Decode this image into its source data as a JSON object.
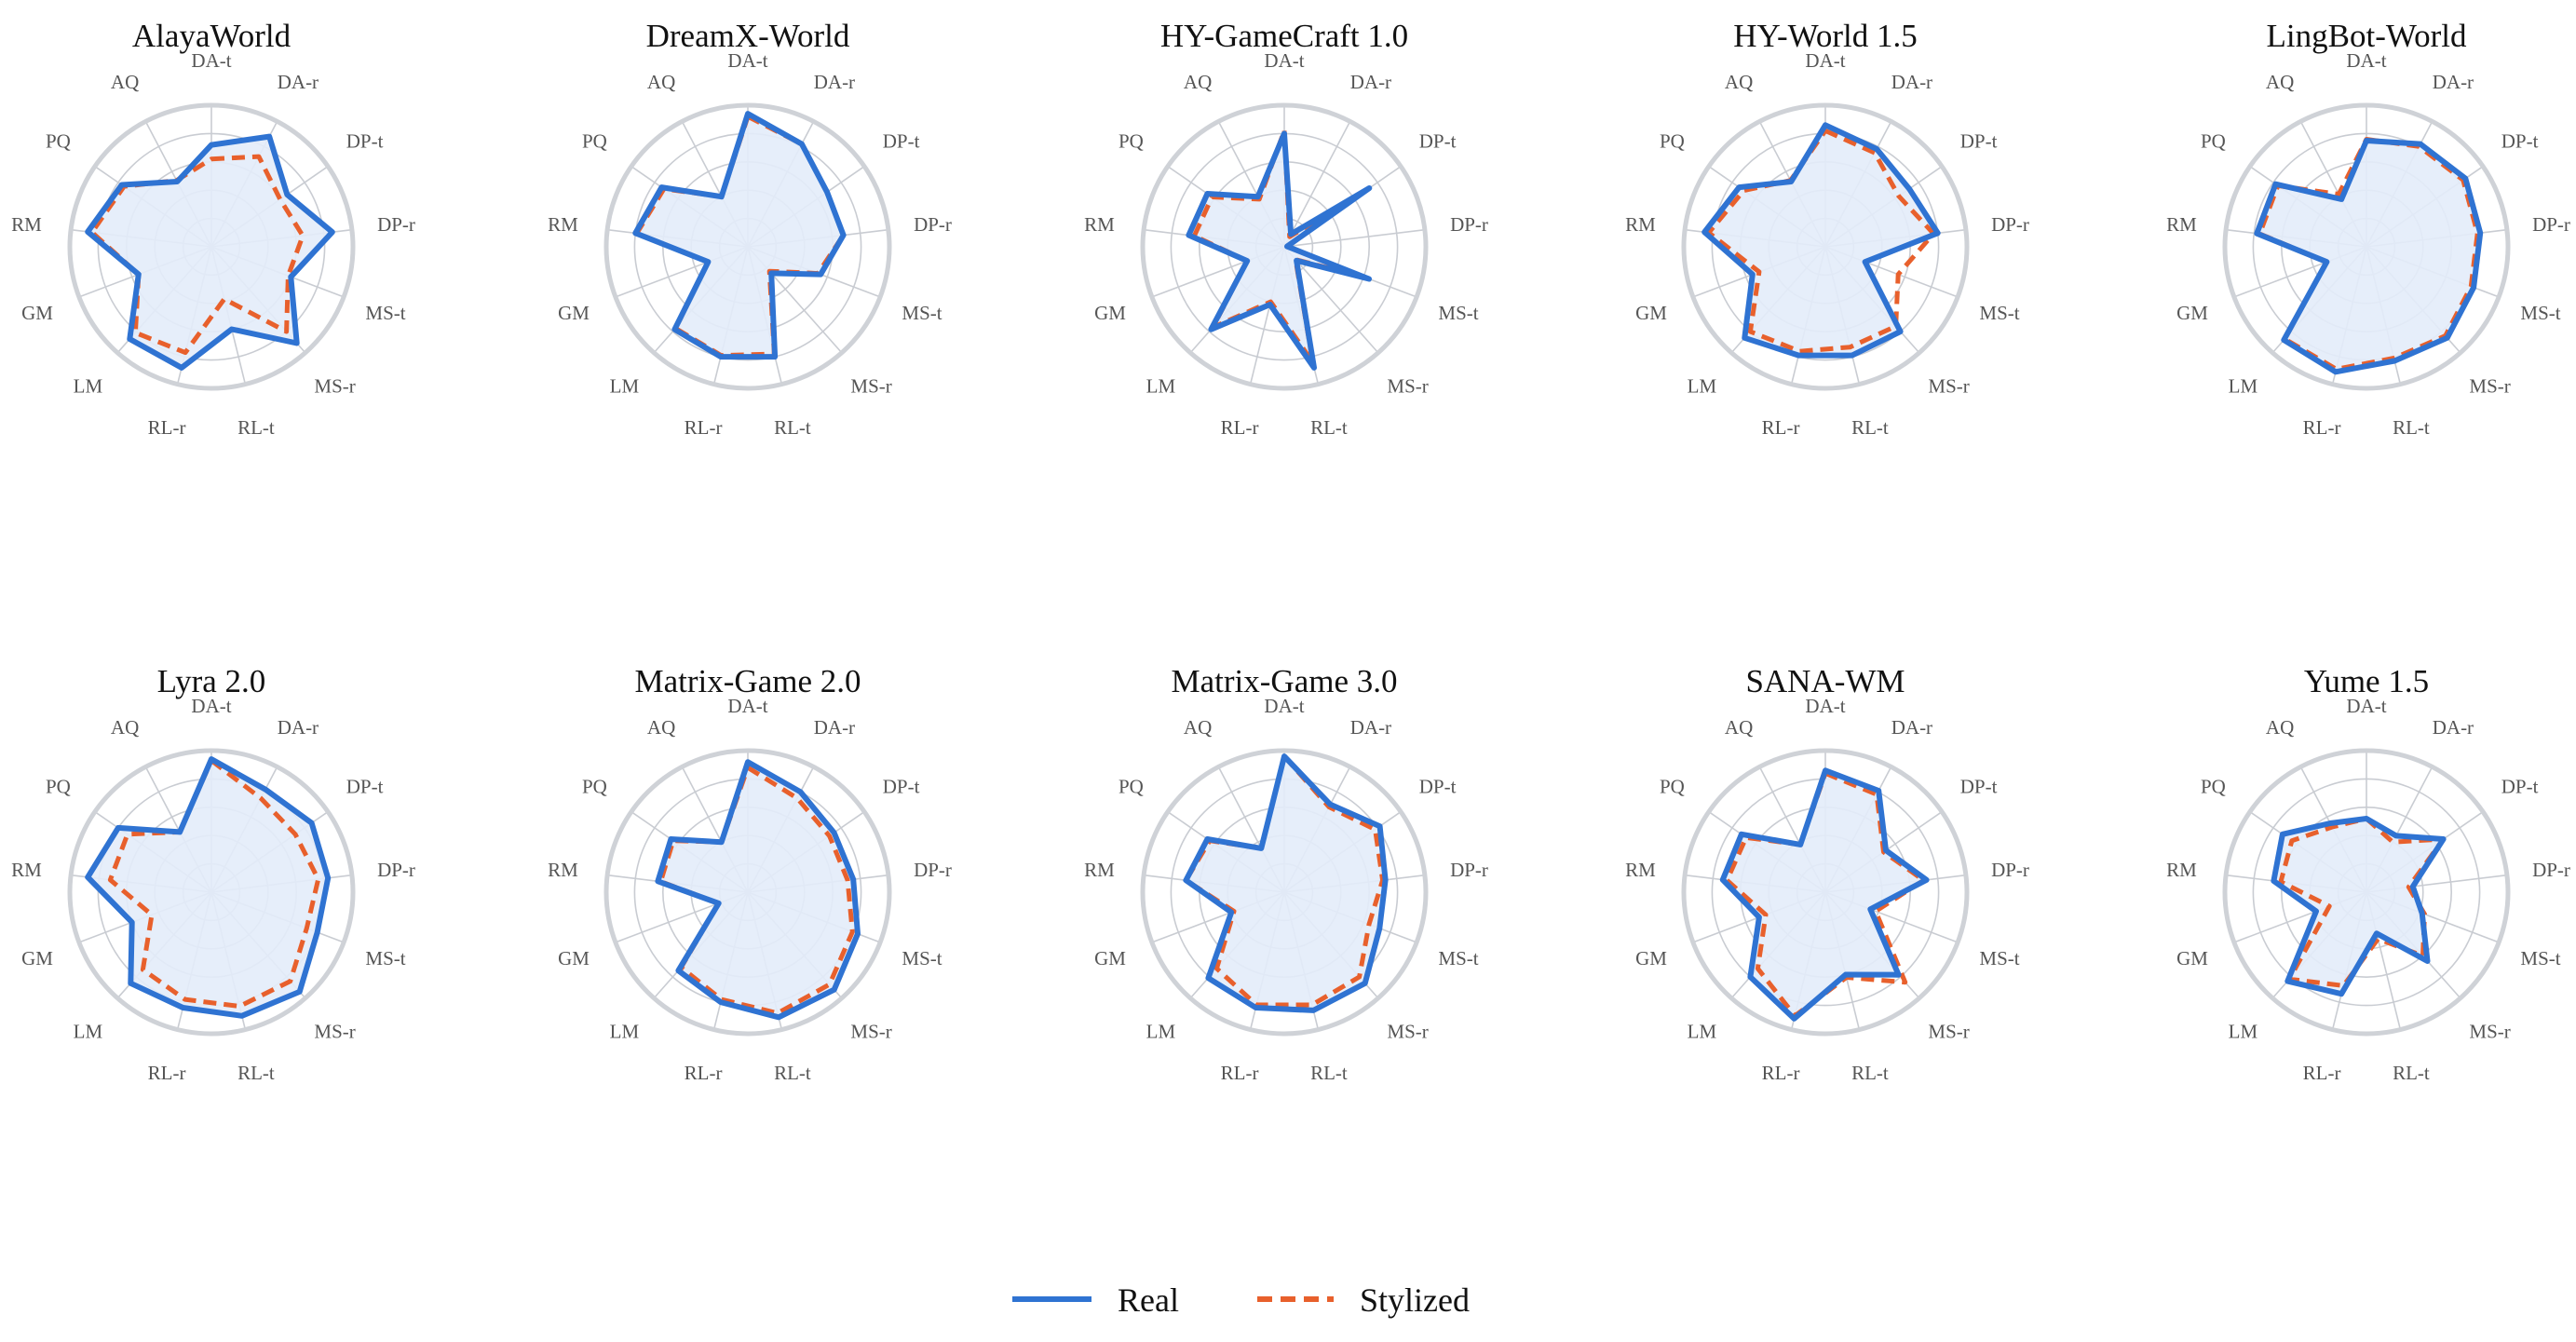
{
  "chart_data": [
    {
      "type": "radar",
      "title": "AlayaWorld",
      "axes": [
        "DA-t",
        "DA-r",
        "DP-t",
        "DP-r",
        "MS-t",
        "MS-r",
        "RL-t",
        "RL-r",
        "LM",
        "GM",
        "RM",
        "PQ",
        "AQ"
      ],
      "rlim": [
        0,
        1
      ],
      "series": [
        {
          "name": "Real",
          "values": [
            0.72,
            0.88,
            0.65,
            0.86,
            0.6,
            0.91,
            0.6,
            0.88,
            0.87,
            0.55,
            0.88,
            0.77,
            0.52
          ]
        },
        {
          "name": "Stylized",
          "values": [
            0.62,
            0.72,
            0.59,
            0.65,
            0.58,
            0.8,
            0.38,
            0.77,
            0.81,
            0.55,
            0.85,
            0.75,
            0.53
          ]
        }
      ]
    },
    {
      "type": "radar",
      "title": "DreamX-World",
      "axes": [
        "DA-t",
        "DA-r",
        "DP-t",
        "DP-r",
        "MS-t",
        "MS-r",
        "RL-t",
        "RL-r",
        "LM",
        "GM",
        "RM",
        "PQ",
        "AQ"
      ],
      "rlim": [
        0,
        1
      ],
      "series": [
        {
          "name": "Real",
          "values": [
            0.94,
            0.82,
            0.68,
            0.68,
            0.55,
            0.25,
            0.8,
            0.8,
            0.78,
            0.3,
            0.8,
            0.74,
            0.4
          ]
        },
        {
          "name": "Stylized",
          "values": [
            0.92,
            0.82,
            0.68,
            0.68,
            0.53,
            0.23,
            0.78,
            0.79,
            0.77,
            0.3,
            0.79,
            0.72,
            0.4
          ]
        }
      ]
    },
    {
      "type": "radar",
      "title": "HY-GameCraft 1.0",
      "axes": [
        "DA-t",
        "DA-r",
        "DP-t",
        "DP-r",
        "MS-t",
        "MS-r",
        "RL-t",
        "RL-r",
        "LM",
        "GM",
        "RM",
        "PQ",
        "AQ"
      ],
      "rlim": [
        0,
        1
      ],
      "series": [
        {
          "name": "Real",
          "values": [
            0.8,
            0.1,
            0.73,
            0.02,
            0.64,
            0.13,
            0.88,
            0.42,
            0.78,
            0.28,
            0.68,
            0.66,
            0.4
          ]
        },
        {
          "name": "Stylized",
          "values": [
            0.82,
            0.08,
            0.7,
            0.02,
            0.6,
            0.12,
            0.84,
            0.4,
            0.76,
            0.28,
            0.64,
            0.62,
            0.38
          ]
        }
      ]
    },
    {
      "type": "radar",
      "title": "HY-World 1.5",
      "axes": [
        "DA-t",
        "DA-r",
        "DP-t",
        "DP-r",
        "MS-t",
        "MS-r",
        "RL-t",
        "RL-r",
        "LM",
        "GM",
        "RM",
        "PQ",
        "AQ"
      ],
      "rlim": [
        0,
        1
      ],
      "series": [
        {
          "name": "Real",
          "values": [
            0.86,
            0.78,
            0.72,
            0.8,
            0.3,
            0.8,
            0.79,
            0.79,
            0.86,
            0.55,
            0.86,
            0.74,
            0.52
          ]
        },
        {
          "name": "Stylized",
          "values": [
            0.82,
            0.75,
            0.63,
            0.77,
            0.55,
            0.75,
            0.73,
            0.76,
            0.8,
            0.5,
            0.83,
            0.7,
            0.53
          ]
        }
      ]
    },
    {
      "type": "radar",
      "title": "LingBot-World",
      "axes": [
        "DA-t",
        "DA-r",
        "DP-t",
        "DP-r",
        "MS-t",
        "MS-r",
        "RL-t",
        "RL-r",
        "LM",
        "GM",
        "RM",
        "PQ",
        "AQ"
      ],
      "rlim": [
        0,
        1
      ],
      "series": [
        {
          "name": "Real",
          "values": [
            0.75,
            0.82,
            0.85,
            0.81,
            0.81,
            0.86,
            0.83,
            0.91,
            0.88,
            0.3,
            0.78,
            0.78,
            0.38
          ]
        },
        {
          "name": "Stylized",
          "values": [
            0.76,
            0.8,
            0.83,
            0.79,
            0.79,
            0.84,
            0.81,
            0.89,
            0.87,
            0.3,
            0.76,
            0.76,
            0.42
          ]
        }
      ]
    },
    {
      "type": "radar",
      "title": "Lyra 2.0",
      "axes": [
        "DA-t",
        "DA-r",
        "DP-t",
        "DP-r",
        "MS-t",
        "MS-r",
        "RL-t",
        "RL-r",
        "LM",
        "GM",
        "RM",
        "PQ",
        "AQ"
      ],
      "rlim": [
        0,
        1
      ],
      "series": [
        {
          "name": "Real",
          "values": [
            0.94,
            0.82,
            0.86,
            0.83,
            0.8,
            0.94,
            0.9,
            0.84,
            0.86,
            0.6,
            0.88,
            0.8,
            0.48
          ]
        },
        {
          "name": "Stylized",
          "values": [
            0.93,
            0.75,
            0.72,
            0.76,
            0.72,
            0.84,
            0.83,
            0.78,
            0.73,
            0.45,
            0.72,
            0.72,
            0.48
          ]
        }
      ]
    },
    {
      "type": "radar",
      "title": "Matrix-Game 2.0",
      "axes": [
        "DA-t",
        "DA-r",
        "DP-t",
        "DP-r",
        "MS-t",
        "MS-r",
        "RL-t",
        "RL-r",
        "LM",
        "GM",
        "RM",
        "PQ",
        "AQ"
      ],
      "rlim": [
        0,
        1
      ],
      "series": [
        {
          "name": "Real",
          "values": [
            0.92,
            0.8,
            0.74,
            0.75,
            0.83,
            0.92,
            0.91,
            0.8,
            0.74,
            0.22,
            0.64,
            0.66,
            0.4
          ]
        },
        {
          "name": "Stylized",
          "values": [
            0.88,
            0.75,
            0.7,
            0.71,
            0.79,
            0.87,
            0.88,
            0.78,
            0.71,
            0.22,
            0.62,
            0.64,
            0.4
          ]
        }
      ]
    },
    {
      "type": "radar",
      "title": "Matrix-Game 3.0",
      "axes": [
        "DA-t",
        "DA-r",
        "DP-t",
        "DP-r",
        "MS-t",
        "MS-r",
        "RL-t",
        "RL-r",
        "LM",
        "GM",
        "RM",
        "PQ",
        "AQ"
      ],
      "rlim": [
        0,
        1
      ],
      "series": [
        {
          "name": "Real",
          "values": [
            0.96,
            0.7,
            0.82,
            0.72,
            0.72,
            0.86,
            0.86,
            0.84,
            0.81,
            0.4,
            0.7,
            0.66,
            0.35
          ]
        },
        {
          "name": "Stylized",
          "values": [
            0.96,
            0.68,
            0.78,
            0.7,
            0.64,
            0.8,
            0.82,
            0.82,
            0.72,
            0.38,
            0.7,
            0.64,
            0.35
          ]
        }
      ]
    },
    {
      "type": "radar",
      "title": "SANA-WM",
      "axes": [
        "DA-t",
        "DA-r",
        "DP-t",
        "DP-r",
        "MS-t",
        "MS-r",
        "RL-t",
        "RL-r",
        "LM",
        "GM",
        "RM",
        "PQ",
        "AQ"
      ],
      "rlim": [
        0,
        1
      ],
      "series": [
        {
          "name": "Real",
          "values": [
            0.86,
            0.81,
            0.52,
            0.72,
            0.34,
            0.78,
            0.6,
            0.92,
            0.8,
            0.5,
            0.73,
            0.72,
            0.38
          ]
        },
        {
          "name": "Stylized",
          "values": [
            0.84,
            0.78,
            0.5,
            0.7,
            0.38,
            0.85,
            0.62,
            0.9,
            0.72,
            0.45,
            0.7,
            0.68,
            0.38
          ]
        }
      ]
    },
    {
      "type": "radar",
      "title": "Yume 1.5",
      "axes": [
        "DA-t",
        "DA-r",
        "DP-t",
        "DP-r",
        "MS-t",
        "MS-r",
        "RL-t",
        "RL-r",
        "LM",
        "GM",
        "RM",
        "PQ",
        "AQ"
      ],
      "rlim": [
        0,
        1
      ],
      "series": [
        {
          "name": "Real",
          "values": [
            0.52,
            0.45,
            0.66,
            0.33,
            0.42,
            0.65,
            0.3,
            0.74,
            0.84,
            0.38,
            0.66,
            0.72,
            0.55
          ]
        },
        {
          "name": "Stylized",
          "values": [
            0.52,
            0.4,
            0.66,
            0.3,
            0.44,
            0.6,
            0.34,
            0.68,
            0.82,
            0.28,
            0.61,
            0.64,
            0.52
          ]
        }
      ]
    }
  ],
  "legend": {
    "items": [
      {
        "label": "Real",
        "style": "solid",
        "color": "#2F73D2"
      },
      {
        "label": "Stylized",
        "style": "dashed",
        "color": "#E8602C"
      }
    ],
    "placement": "bottom-center"
  },
  "colors": {
    "real": "#2F73D2",
    "stylized": "#E8602C",
    "fill": "#E3ECF9",
    "grid": "#C9CCD2"
  }
}
